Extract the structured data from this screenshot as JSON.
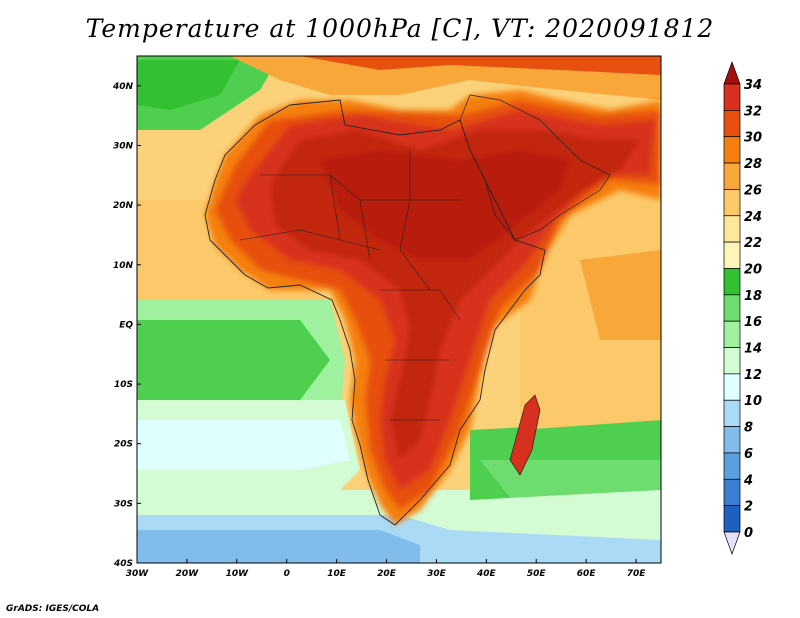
{
  "title": "Temperature at 1000hPa [C], VT: 2020091812",
  "credit": "GrADS: IGES/COLA",
  "map": {
    "lon_ticks": [
      "30W",
      "20W",
      "10W",
      "0",
      "10E",
      "20E",
      "30E",
      "40E",
      "50E",
      "60E",
      "70E"
    ],
    "lat_ticks": [
      "40N",
      "30N",
      "20N",
      "10N",
      "EQ",
      "10S",
      "20S",
      "30S",
      "40S"
    ],
    "extent": {
      "lon": [
        -30,
        75
      ],
      "lat": [
        -40,
        45
      ]
    }
  },
  "colorbar": {
    "labels": [
      "34",
      "32",
      "30",
      "28",
      "26",
      "24",
      "22",
      "20",
      "18",
      "16",
      "14",
      "12",
      "10",
      "8",
      "6",
      "4",
      "2",
      "0"
    ],
    "colors": [
      "#a50f0d",
      "#d7301f",
      "#e7500f",
      "#f57f0f",
      "#f8a83a",
      "#fbc96a",
      "#fde79a",
      "#fff5b8",
      "#33c033",
      "#6fdc6f",
      "#9ff09f",
      "#d4fcd4",
      "#e0ffff",
      "#aadaf5",
      "#82bceb",
      "#5a9fe0",
      "#3a80d2",
      "#1e60c0",
      "#0f40a8",
      "#0a2080",
      "#e6e0f8"
    ]
  }
}
